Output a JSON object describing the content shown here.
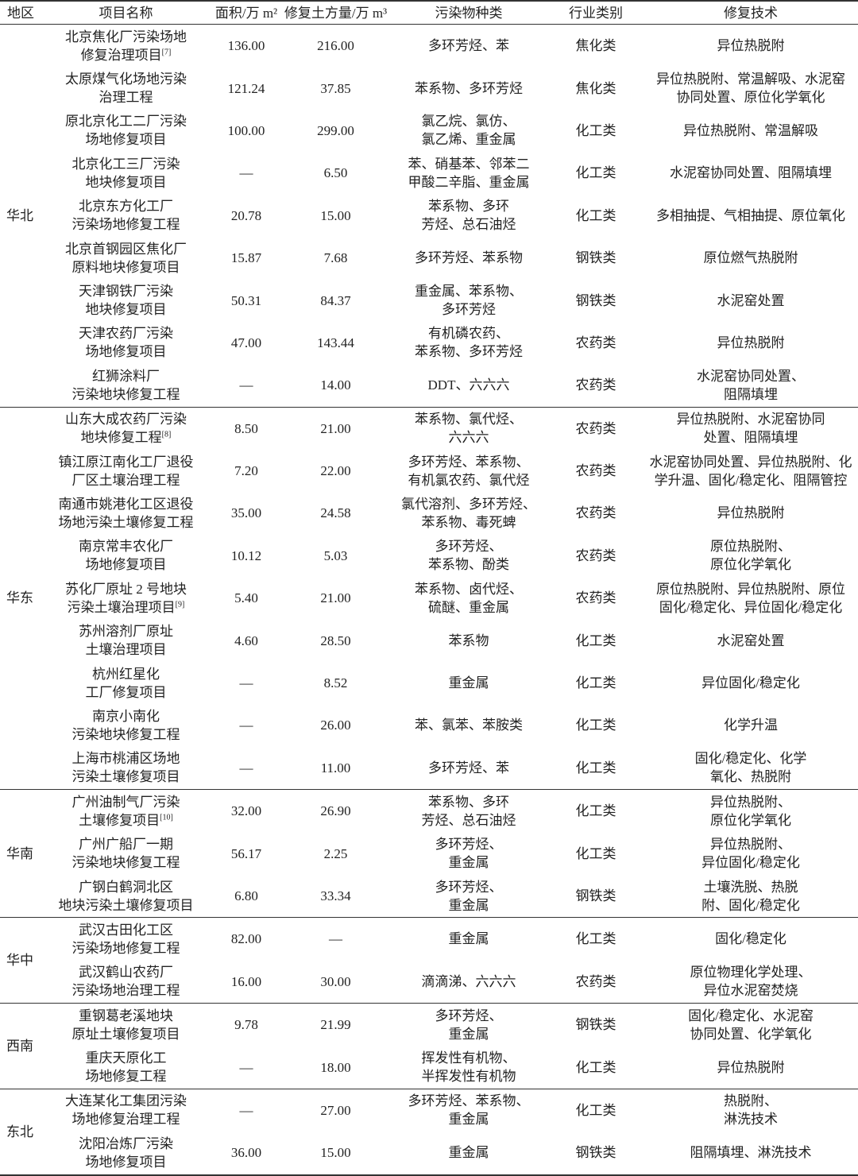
{
  "table": {
    "header": [
      "地区",
      "项目名称",
      "面积/万 m²",
      "修复土方量/万 m³",
      "污染物种类",
      "行业类别",
      "修复技术"
    ],
    "groups": [
      {
        "region": "华北",
        "rows": [
          {
            "name": [
              "北京焦化厂污染场地",
              "修复治理项目"
            ],
            "ref": "[7]",
            "area": "136.00",
            "volume": "216.00",
            "pollutants": [
              "多环芳烃、苯"
            ],
            "industry": "焦化类",
            "technology": [
              "异位热脱附"
            ]
          },
          {
            "name": [
              "太原煤气化场地污染",
              "治理工程"
            ],
            "area": "121.24",
            "volume": "37.85",
            "pollutants": [
              "苯系物、多环芳烃"
            ],
            "industry": "焦化类",
            "technology": [
              "异位热脱附、常温解吸、水泥窑",
              "协同处置、原位化学氧化"
            ]
          },
          {
            "name": [
              "原北京化工二厂污染",
              "场地修复项目"
            ],
            "area": "100.00",
            "volume": "299.00",
            "pollutants": [
              "氯乙烷、氯仿、",
              "氯乙烯、重金属"
            ],
            "industry": "化工类",
            "technology": [
              "异位热脱附、常温解吸"
            ]
          },
          {
            "name": [
              "北京化工三厂污染",
              "地块修复项目"
            ],
            "area": "—",
            "volume": "6.50",
            "pollutants": [
              "苯、硝基苯、邻苯二",
              "甲酸二辛脂、重金属"
            ],
            "industry": "化工类",
            "technology": [
              "水泥窑协同处置、阻隔填埋"
            ]
          },
          {
            "name": [
              "北京东方化工厂",
              "污染场地修复工程"
            ],
            "area": "20.78",
            "volume": "15.00",
            "pollutants": [
              "苯系物、多环",
              "芳烃、总石油烃"
            ],
            "industry": "化工类",
            "technology": [
              "多相抽提、气相抽提、原位氧化"
            ]
          },
          {
            "name": [
              "北京首钢园区焦化厂",
              "原料地块修复项目"
            ],
            "area": "15.87",
            "volume": "7.68",
            "pollutants": [
              "多环芳烃、苯系物"
            ],
            "industry": "钢铁类",
            "technology": [
              "原位燃气热脱附"
            ]
          },
          {
            "name": [
              "天津钢铁厂污染",
              "地块修复项目"
            ],
            "area": "50.31",
            "volume": "84.37",
            "pollutants": [
              "重金属、苯系物、",
              "多环芳烃"
            ],
            "industry": "钢铁类",
            "technology": [
              "水泥窑处置"
            ]
          },
          {
            "name": [
              "天津农药厂污染",
              "场地修复项目"
            ],
            "area": "47.00",
            "volume": "143.44",
            "pollutants": [
              "有机磷农药、",
              "苯系物、多环芳烃"
            ],
            "industry": "农药类",
            "technology": [
              "异位热脱附"
            ]
          },
          {
            "name": [
              "红狮涂料厂",
              "污染地块修复工程"
            ],
            "area": "—",
            "volume": "14.00",
            "pollutants": [
              "DDT、六六六"
            ],
            "industry": "农药类",
            "technology": [
              "水泥窑协同处置、",
              "阻隔填埋"
            ]
          }
        ]
      },
      {
        "region": "华东",
        "rows": [
          {
            "name": [
              "山东大成农药厂污染",
              "地块修复工程"
            ],
            "ref": "[8]",
            "area": "8.50",
            "volume": "21.00",
            "pollutants": [
              "苯系物、氯代烃、",
              "六六六"
            ],
            "industry": "农药类",
            "technology": [
              "异位热脱附、水泥窑协同",
              "处置、阻隔填埋"
            ]
          },
          {
            "name": [
              "镇江原江南化工厂退役",
              "厂区土壤治理工程"
            ],
            "area": "7.20",
            "volume": "22.00",
            "pollutants": [
              "多环芳烃、苯系物、",
              "有机氯农药、氯代烃"
            ],
            "industry": "农药类",
            "technology": [
              "水泥窑协同处置、异位热脱附、化",
              "学升温、固化/稳定化、阻隔管控"
            ]
          },
          {
            "name": [
              "南通市姚港化工区退役",
              "场地污染土壤修复工程"
            ],
            "area": "35.00",
            "volume": "24.58",
            "pollutants": [
              "氯代溶剂、多环芳烃、",
              "苯系物、毒死蜱"
            ],
            "industry": "农药类",
            "technology": [
              "异位热脱附"
            ]
          },
          {
            "name": [
              "南京常丰农化厂",
              "场地修复项目"
            ],
            "area": "10.12",
            "volume": "5.03",
            "pollutants": [
              "多环芳烃、",
              "苯系物、酚类"
            ],
            "industry": "农药类",
            "technology": [
              "原位热脱附、",
              "原位化学氧化"
            ]
          },
          {
            "name": [
              "苏化厂原址 2 号地块",
              "污染土壤治理项目"
            ],
            "ref": "[9]",
            "area": "5.40",
            "volume": "21.00",
            "pollutants": [
              "苯系物、卤代烃、",
              "硫醚、重金属"
            ],
            "industry": "农药类",
            "technology": [
              "原位热脱附、异位热脱附、原位",
              "固化/稳定化、异位固化/稳定化"
            ]
          },
          {
            "name": [
              "苏州溶剂厂原址",
              "土壤治理项目"
            ],
            "area": "4.60",
            "volume": "28.50",
            "pollutants": [
              "苯系物"
            ],
            "industry": "化工类",
            "technology": [
              "水泥窑处置"
            ]
          },
          {
            "name": [
              "杭州红星化",
              "工厂修复项目"
            ],
            "area": "—",
            "volume": "8.52",
            "pollutants": [
              "重金属"
            ],
            "industry": "化工类",
            "technology": [
              "异位固化/稳定化"
            ]
          },
          {
            "name": [
              "南京小南化",
              "污染地块修复工程"
            ],
            "area": "—",
            "volume": "26.00",
            "pollutants": [
              "苯、氯苯、苯胺类"
            ],
            "industry": "化工类",
            "technology": [
              "化学升温"
            ]
          },
          {
            "name": [
              "上海市桃浦区场地",
              "污染土壤修复项目"
            ],
            "area": "—",
            "volume": "11.00",
            "pollutants": [
              "多环芳烃、苯"
            ],
            "industry": "化工类",
            "technology": [
              "固化/稳定化、化学",
              "氧化、热脱附"
            ]
          }
        ]
      },
      {
        "region": "华南",
        "rows": [
          {
            "name": [
              "广州油制气厂污染",
              "土壤修复项目"
            ],
            "ref": "[10]",
            "area": "32.00",
            "volume": "26.90",
            "pollutants": [
              "苯系物、多环",
              "芳烃、总石油烃"
            ],
            "industry": "化工类",
            "technology": [
              "异位热脱附、",
              "原位化学氧化"
            ]
          },
          {
            "name": [
              "广州广船厂一期",
              "污染地块修复工程"
            ],
            "area": "56.17",
            "volume": "2.25",
            "pollutants": [
              "多环芳烃、",
              "重金属"
            ],
            "industry": "化工类",
            "technology": [
              "异位热脱附、",
              "异位固化/稳定化"
            ]
          },
          {
            "name": [
              "广钢白鹤洞北区",
              "地块污染土壤修复项目"
            ],
            "area": "6.80",
            "volume": "33.34",
            "pollutants": [
              "多环芳烃、",
              "重金属"
            ],
            "industry": "钢铁类",
            "technology": [
              "土壤洗脱、热脱",
              "附、固化/稳定化"
            ]
          }
        ]
      },
      {
        "region": "华中",
        "rows": [
          {
            "name": [
              "武汉古田化工区",
              "污染场地修复工程"
            ],
            "area": "82.00",
            "volume": "—",
            "pollutants": [
              "重金属"
            ],
            "industry": "化工类",
            "technology": [
              "固化/稳定化"
            ]
          },
          {
            "name": [
              "武汉鹤山农药厂",
              "污染场地治理工程"
            ],
            "area": "16.00",
            "volume": "30.00",
            "pollutants": [
              "滴滴涕、六六六"
            ],
            "industry": "农药类",
            "technology": [
              "原位物理化学处理、",
              "异位水泥窑焚烧"
            ]
          }
        ]
      },
      {
        "region": "西南",
        "rows": [
          {
            "name": [
              "重钢葛老溪地块",
              "原址土壤修复项目"
            ],
            "area": "9.78",
            "volume": "21.99",
            "pollutants": [
              "多环芳烃、",
              "重金属"
            ],
            "industry": "钢铁类",
            "technology": [
              "固化/稳定化、水泥窑",
              "协同处置、化学氧化"
            ]
          },
          {
            "name": [
              "重庆天原化工",
              "场地修复工程"
            ],
            "area": "—",
            "volume": "18.00",
            "pollutants": [
              "挥发性有机物、",
              "半挥发性有机物"
            ],
            "industry": "化工类",
            "technology": [
              "异位热脱附"
            ]
          }
        ]
      },
      {
        "region": "东北",
        "rows": [
          {
            "name": [
              "大连某化工集团污染",
              "场地修复治理工程"
            ],
            "area": "—",
            "volume": "27.00",
            "pollutants": [
              "多环芳烃、苯系物、",
              "重金属"
            ],
            "industry": "化工类",
            "technology": [
              "热脱附、",
              "淋洗技术"
            ]
          },
          {
            "name": [
              "沈阳冶炼厂污染",
              "场地修复项目"
            ],
            "area": "36.00",
            "volume": "15.00",
            "pollutants": [
              "重金属"
            ],
            "industry": "钢铁类",
            "technology": [
              "阻隔填埋、淋洗技术"
            ]
          }
        ]
      }
    ]
  }
}
